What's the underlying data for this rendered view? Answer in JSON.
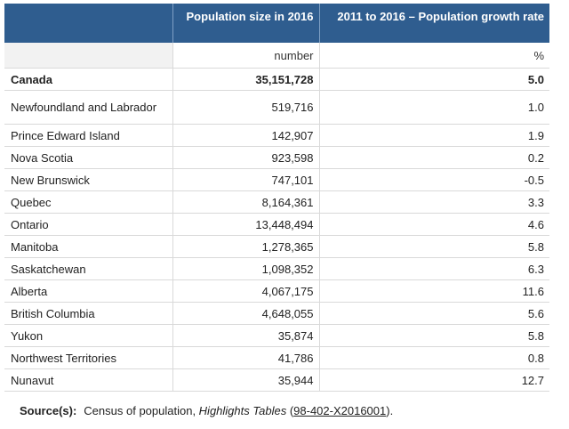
{
  "header": {
    "col1": "",
    "col2": "Population size in 2016",
    "col3": "2011 to 2016 – Population growth rate"
  },
  "units": {
    "col2": "number",
    "col3": "%"
  },
  "rows": [
    {
      "name": "Canada",
      "pop": "35,151,728",
      "growth": "5.0"
    },
    {
      "name": "Newfoundland and Labrador",
      "pop": "519,716",
      "growth": "1.0"
    },
    {
      "name": "Prince Edward Island",
      "pop": "142,907",
      "growth": "1.9"
    },
    {
      "name": "Nova Scotia",
      "pop": "923,598",
      "growth": "0.2"
    },
    {
      "name": "New Brunswick",
      "pop": "747,101",
      "growth": "-0.5"
    },
    {
      "name": "Quebec",
      "pop": "8,164,361",
      "growth": "3.3"
    },
    {
      "name": "Ontario",
      "pop": "13,448,494",
      "growth": "4.6"
    },
    {
      "name": "Manitoba",
      "pop": "1,278,365",
      "growth": "5.8"
    },
    {
      "name": "Saskatchewan",
      "pop": "1,098,352",
      "growth": "6.3"
    },
    {
      "name": "Alberta",
      "pop": "4,067,175",
      "growth": "11.6"
    },
    {
      "name": "British Columbia",
      "pop": "4,648,055",
      "growth": "5.6"
    },
    {
      "name": "Yukon",
      "pop": "35,874",
      "growth": "5.8"
    },
    {
      "name": "Northwest Territories",
      "pop": "41,786",
      "growth": "0.8"
    },
    {
      "name": "Nunavut",
      "pop": "35,944",
      "growth": "12.7"
    }
  ],
  "source": {
    "label": "Source(s):",
    "text_before": "Census of population, ",
    "italic": "Highlights Tables",
    "space": " (",
    "link": "98-402-X2016001",
    "text_after": ")."
  }
}
